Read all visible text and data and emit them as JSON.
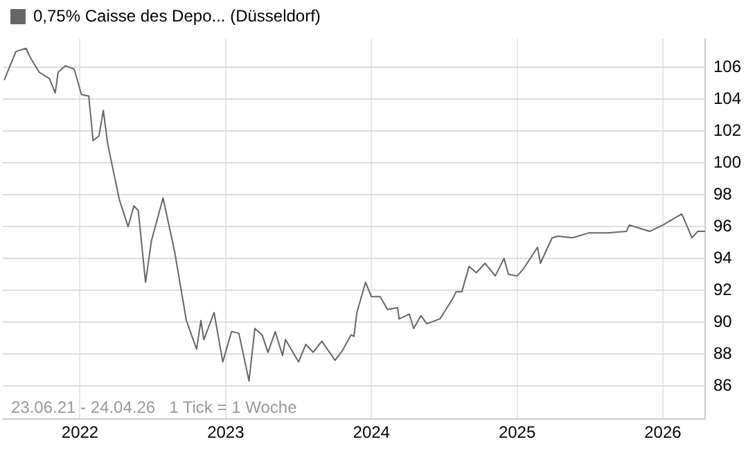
{
  "chart_data": {
    "type": "line",
    "xlim": [
      2021.47,
      2026.29
    ],
    "xticks": [
      2022,
      2023,
      2024,
      2025,
      2026
    ],
    "ylim": [
      83.9,
      107.8
    ],
    "yticks": [
      86,
      88,
      90,
      92,
      94,
      96,
      98,
      100,
      102,
      104,
      106
    ],
    "grid": true,
    "legend": "top left",
    "marker": "none",
    "line_style": "solid",
    "annotations": [
      "23.06.21 - 24.04.26   1 Tick = 1 Woche"
    ],
    "series": [
      {
        "name": "0,75% Caisse des Depo... (Düsseldorf)",
        "color": "#666666",
        "x": [
          2021.48,
          2021.56,
          2021.63,
          2021.66,
          2021.72,
          2021.79,
          2021.83,
          2021.85,
          2021.9,
          2021.96,
          2022.01,
          2022.06,
          2022.09,
          2022.13,
          2022.16,
          2022.19,
          2022.24,
          2022.27,
          2022.33,
          2022.37,
          2022.4,
          2022.45,
          2022.49,
          2022.57,
          2022.65,
          2022.73,
          2022.8,
          2022.83,
          2022.85,
          2022.92,
          2022.98,
          2023.04,
          2023.09,
          2023.16,
          2023.2,
          2023.25,
          2023.29,
          2023.34,
          2023.39,
          2023.41,
          2023.5,
          2023.55,
          2023.6,
          2023.66,
          2023.75,
          2023.8,
          2023.86,
          2023.88,
          2023.9,
          2023.96,
          2024.0,
          2024.06,
          2024.11,
          2024.18,
          2024.19,
          2024.26,
          2024.29,
          2024.34,
          2024.38,
          2024.47,
          2024.56,
          2024.58,
          2024.62,
          2024.67,
          2024.72,
          2024.78,
          2024.85,
          2024.91,
          2024.94,
          2025.0,
          2025.04,
          2025.14,
          2025.16,
          2025.24,
          2025.28,
          2025.38,
          2025.49,
          2025.62,
          2025.75,
          2025.77,
          2025.84,
          2025.91,
          2026.0,
          2026.13,
          2026.2,
          2026.24,
          2026.29
        ],
        "values": [
          105.2,
          107.0,
          107.2,
          106.6,
          105.7,
          105.3,
          104.4,
          105.7,
          106.1,
          105.9,
          104.3,
          104.2,
          101.4,
          101.7,
          103.3,
          101.2,
          99.0,
          97.7,
          96.0,
          97.3,
          97.0,
          92.5,
          95.1,
          97.8,
          94.4,
          90.1,
          88.3,
          90.1,
          88.9,
          90.6,
          87.5,
          89.4,
          89.3,
          86.3,
          89.6,
          89.2,
          88.1,
          89.4,
          87.9,
          88.9,
          87.5,
          88.6,
          88.1,
          88.8,
          87.6,
          88.2,
          89.2,
          89.1,
          90.6,
          92.5,
          91.6,
          91.6,
          90.8,
          90.9,
          90.2,
          90.5,
          89.6,
          90.4,
          89.9,
          90.2,
          91.5,
          91.9,
          91.9,
          93.5,
          93.1,
          93.7,
          92.9,
          94.0,
          93.0,
          92.9,
          93.3,
          94.7,
          93.7,
          95.3,
          95.4,
          95.3,
          95.6,
          95.6,
          95.7,
          96.1,
          95.9,
          95.7,
          96.1,
          96.8,
          95.3,
          95.7,
          95.7
        ]
      }
    ]
  }
}
